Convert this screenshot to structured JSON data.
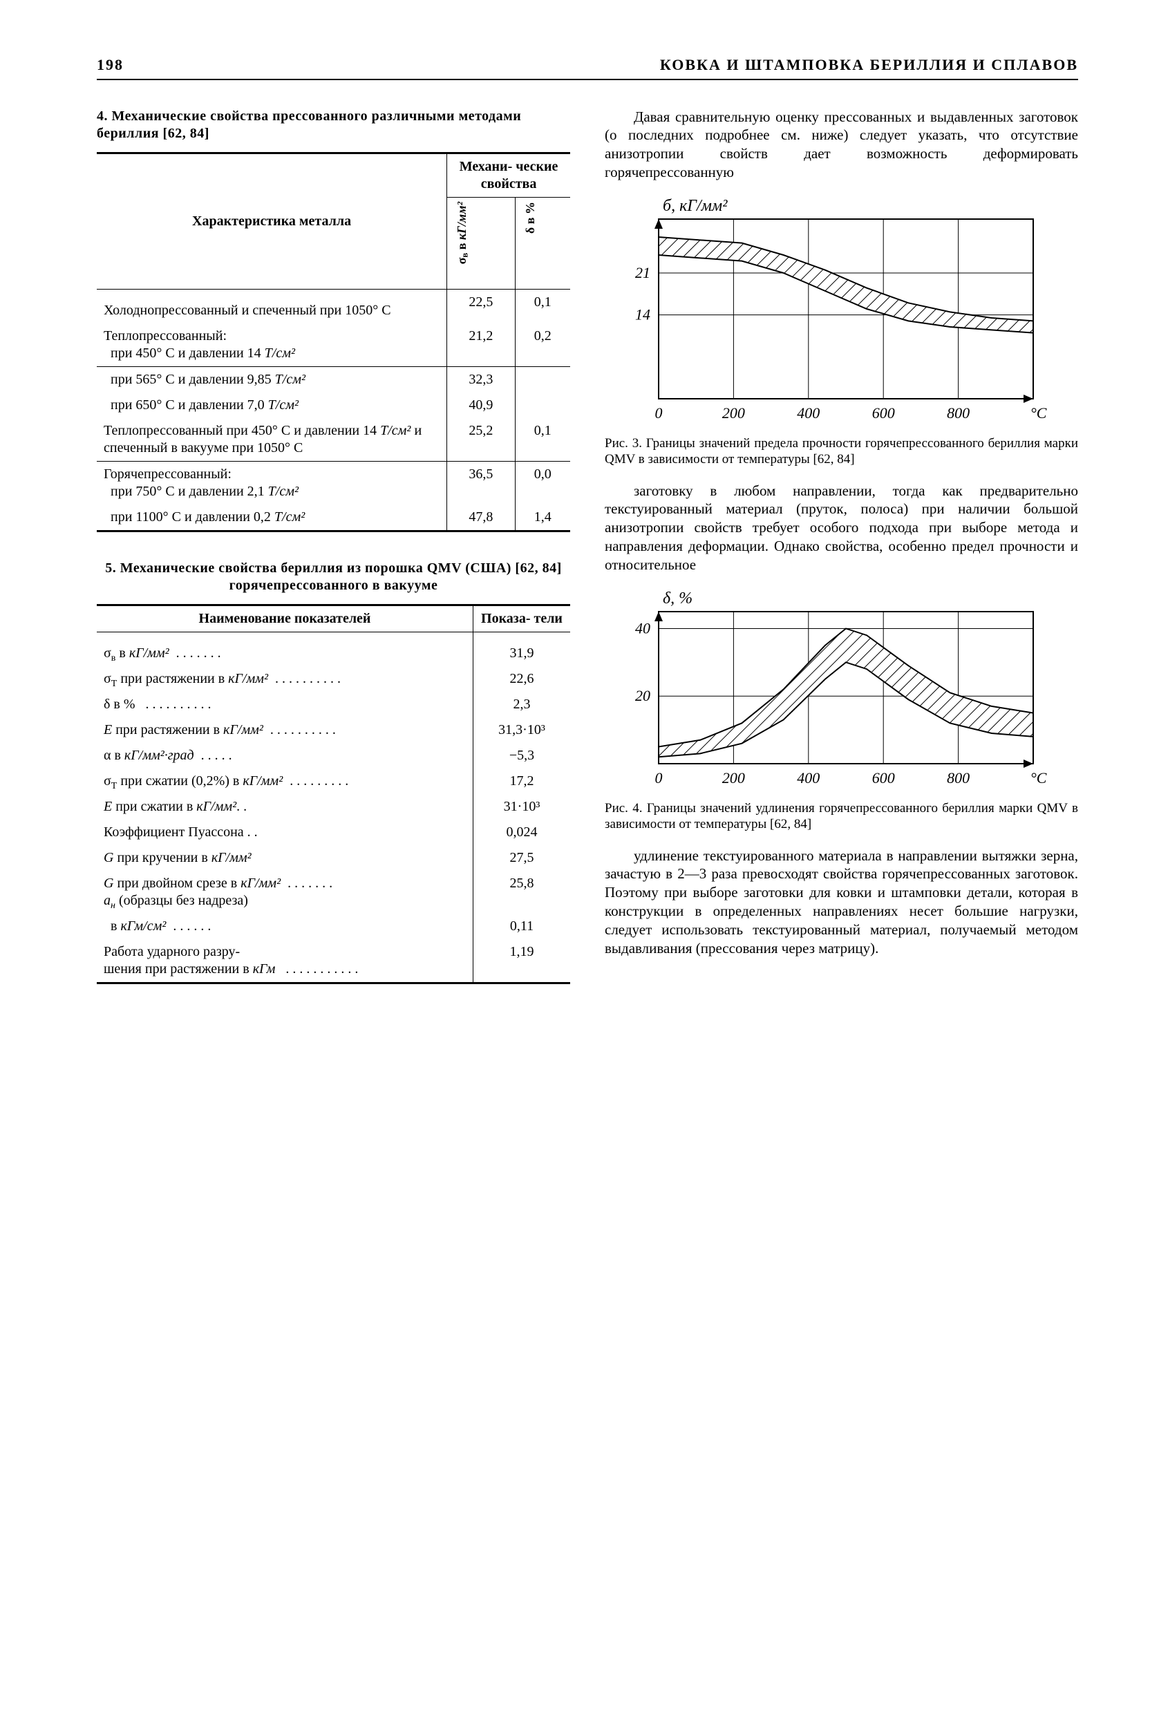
{
  "page_number": "198",
  "running_head": "КОВКА И ШТАМПОВКА БЕРИЛЛИЯ И СПЛАВОВ",
  "table4": {
    "caption": "4. Механические свойства прессованного различными методами бериллия [62, 84]",
    "head_col1": "Характеристика металла",
    "head_group": "Механи-\nческие\nсвойства",
    "head_sigma_html": "σ<sub>в</sub> в <i>кГ/мм²</i>",
    "head_delta_html": "δ в %",
    "rows": [
      {
        "t": "Холоднопрессованный и спеченный при 1050° С",
        "s": "22,5",
        "d": "0,1"
      },
      {
        "t": "Теплопрессованный:\n  при 450° С и давлении 14 Т/см²",
        "s": "21,2",
        "d": "0,2"
      },
      {
        "t": "  при 565° С и давлении 9,85 Т/см²",
        "s": "32,3",
        "d": ""
      },
      {
        "t": "  при 650° С и давлении 7,0 Т/см²",
        "s": "40,9",
        "d": ""
      },
      {
        "t": "Теплопрессованный при 450° С и давлении 14 Т/см² и спеченный в вакууме при 1050° С",
        "s": "25,2",
        "d": "0,1"
      },
      {
        "t": "Горячепрессованный:\n  при 750° С и давлении 2,1 Т/см²",
        "s": "36,5",
        "d": "0,0"
      },
      {
        "t": "  при 1100° С и давлении 0,2 Т/см²",
        "s": "47,8",
        "d": "1,4"
      }
    ]
  },
  "table5": {
    "caption": "5. Механические свойства бериллия из порошка QMV (США) [62, 84] горячепрессованного в вакууме",
    "head_col1": "Наименование показателей",
    "head_col2": "Показа-\nтели",
    "rows": [
      {
        "t": "σ<sub>в</sub> в <i>кГ/мм²</i>  . . . . . . .",
        "v": "31,9"
      },
      {
        "t": "σ<sub>T</sub> при растяжении в <i>кГ/мм²</i>  . . . . . . . . . .",
        "v": "22,6"
      },
      {
        "t": "δ в %   . . . . . . . . . .",
        "v": "2,3"
      },
      {
        "t": "<i>E</i> при растяжении в <i>кГ/мм²</i>  . . . . . . . . . .",
        "v": "31,3·10³"
      },
      {
        "t": "α в <i>кГ/мм²·град</i>  . . . . .",
        "v": "−5,3"
      },
      {
        "t": "σ<sub>T</sub> при сжатии (0,2%) в <i>кГ/мм²</i>  . . . . . . . . .",
        "v": "17,2"
      },
      {
        "t": "<i>E</i> при сжатии в <i>кГ/мм²</i>. .",
        "v": "31·10³"
      },
      {
        "t": "Коэффициент Пуассона . .",
        "v": "0,024"
      },
      {
        "t": "<i>G</i> при кручении в <i>кГ/мм²</i>",
        "v": "27,5"
      },
      {
        "t": "<i>G</i> при двойном срезе в <i>кГ/мм²</i>  . . . . . . .<br><i>a<sub>н</sub></i> (образцы без надреза)",
        "v": "25,8"
      },
      {
        "t": "  в <i>кГм/см²</i>  . . . . . .",
        "v": "0,11"
      },
      {
        "t": "Работа ударного разру-\nшения при растяжении в <i>кГм</i>   . . . . . . . . . . .",
        "v": "1,19"
      }
    ]
  },
  "paragraph1": "Давая сравнительную оценку прессованных и выдавленных заготовок (о последних подробнее см. ниже) следует указать, что отсутствие анизотропии свойств дает возможность деформировать горячепрессованную",
  "fig3": {
    "caption": "Рис. 3. Границы значений предела прочности горячепрессованного бериллия марки QMV в зависимости от температуры [62, 84]",
    "ylabel": "б, кГ/мм²",
    "xlabel": "°С",
    "x_ticks": [
      "0",
      "200",
      "400",
      "600",
      "800"
    ],
    "y_ticks": [
      "14",
      "21"
    ],
    "xlim": [
      0,
      900
    ],
    "ylim": [
      0,
      30
    ],
    "upper": [
      [
        0,
        27
      ],
      [
        100,
        26.5
      ],
      [
        200,
        26
      ],
      [
        300,
        24
      ],
      [
        400,
        21.5
      ],
      [
        500,
        18.5
      ],
      [
        600,
        16
      ],
      [
        700,
        14.5
      ],
      [
        800,
        13.5
      ],
      [
        900,
        13
      ]
    ],
    "lower": [
      [
        0,
        24
      ],
      [
        100,
        23.5
      ],
      [
        200,
        23
      ],
      [
        300,
        21
      ],
      [
        400,
        18
      ],
      [
        500,
        15
      ],
      [
        600,
        13
      ],
      [
        700,
        12
      ],
      [
        800,
        11.5
      ],
      [
        900,
        11
      ]
    ],
    "axis_color": "#000000",
    "grid_color": "#000000",
    "band_fill": "#ffffff",
    "hatch_color": "#000000",
    "line_width": 2
  },
  "paragraph2": "заготовку в любом направлении, тогда как предварительно текстуированный материал (пруток, полоса) при наличии большой анизотропии свойств требует особого подхода при выборе метода и направления деформации. Однако свойства, особенно предел прочности и относительное",
  "fig4": {
    "caption": "Рис. 4. Границы значений удлинения горячепрессованного бериллия марки QMV в зависимости от температуры [62, 84]",
    "ylabel": "δ, %",
    "xlabel": "°С",
    "x_ticks": [
      "0",
      "200",
      "400",
      "600",
      "800"
    ],
    "y_ticks": [
      "20",
      "40"
    ],
    "xlim": [
      0,
      900
    ],
    "ylim": [
      0,
      45
    ],
    "upper": [
      [
        0,
        5
      ],
      [
        100,
        7
      ],
      [
        200,
        12
      ],
      [
        300,
        22
      ],
      [
        400,
        35
      ],
      [
        450,
        40
      ],
      [
        500,
        38
      ],
      [
        600,
        29
      ],
      [
        700,
        21
      ],
      [
        800,
        17
      ],
      [
        900,
        15
      ]
    ],
    "lower": [
      [
        0,
        2
      ],
      [
        100,
        3
      ],
      [
        200,
        6
      ],
      [
        300,
        13
      ],
      [
        400,
        25
      ],
      [
        450,
        30
      ],
      [
        500,
        28
      ],
      [
        600,
        19
      ],
      [
        700,
        12
      ],
      [
        800,
        9
      ],
      [
        900,
        8
      ]
    ],
    "axis_color": "#000000",
    "grid_color": "#000000",
    "band_fill": "#ffffff",
    "hatch_color": "#000000",
    "line_width": 2
  },
  "paragraph3": "удлинение текстуированного материала в направлении вытяжки зерна, зачастую в 2—3 раза превосходят свойства горячепрессованных заготовок. Поэтому при выборе заготовки для ковки и штамповки детали, которая в конструкции в определенных направлениях несет большие нагрузки, следует использовать текстуированный материал, получаемый методом выдавливания (прессования через матрицу)."
}
